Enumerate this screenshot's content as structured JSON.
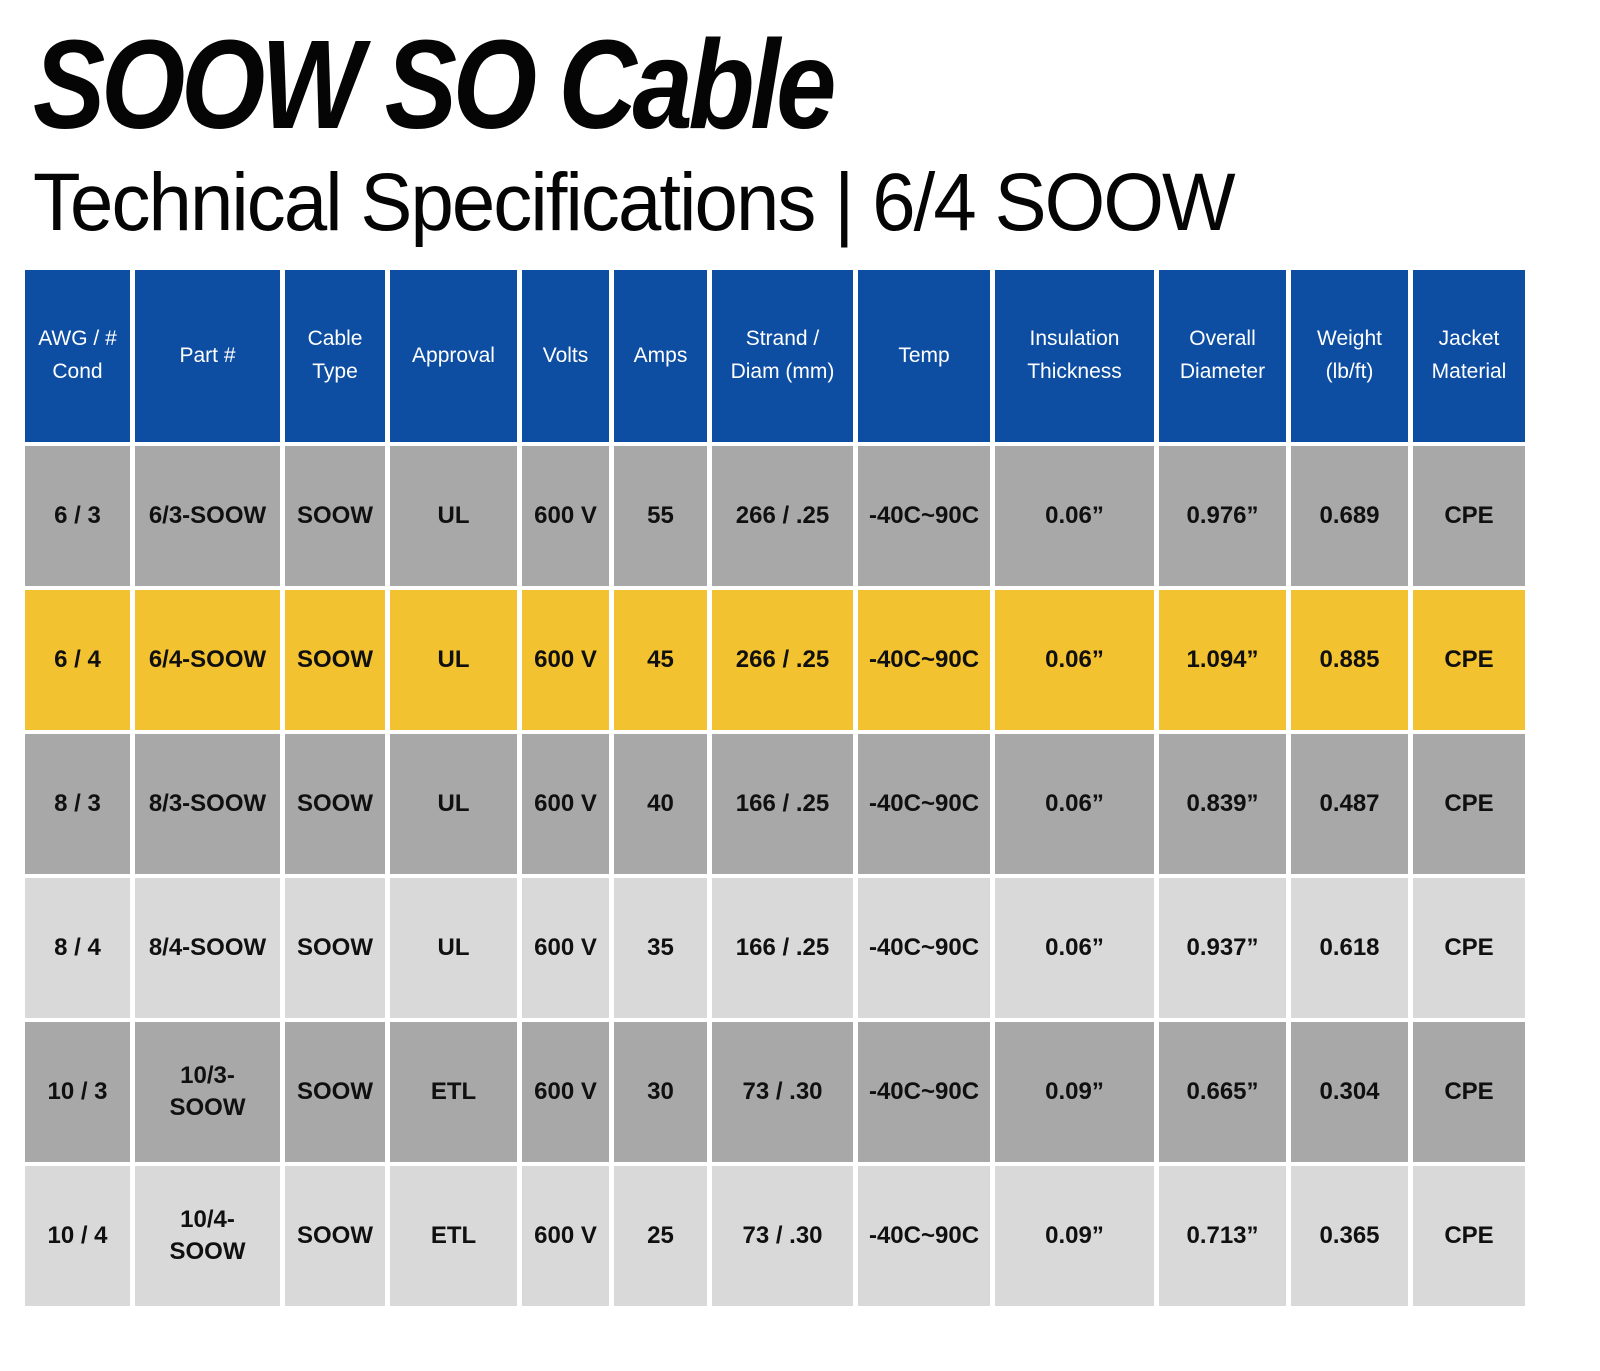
{
  "page": {
    "title": "SOOW SO Cable",
    "subtitle": "Technical Specifications | 6/4 SOOW"
  },
  "colors": {
    "header_bg": "#0d4ea3",
    "header_text": "#ffffff",
    "row_gray": "#a8a8a8",
    "row_light_gray": "#d9d9d9",
    "row_highlight_yellow": "#f2c230",
    "cell_text": "#101010",
    "page_bg": "#ffffff"
  },
  "table": {
    "columns": [
      "AWG / # Cond",
      "Part #",
      "Cable Type",
      "Approval",
      "Volts",
      "Amps",
      "Strand / Diam (mm)",
      "Temp",
      "Insulation Thickness",
      "Overall Diameter",
      "Weight (lb/ft)",
      "Jacket Material"
    ],
    "rows": [
      {
        "shade": "gray",
        "cells": [
          "6 / 3",
          "6/3-SOOW",
          "SOOW",
          "UL",
          "600 V",
          "55",
          "266 / .25",
          "-40C~90C",
          "0.06”",
          "0.976”",
          "0.689",
          "CPE"
        ]
      },
      {
        "shade": "highlight",
        "cells": [
          "6 / 4",
          "6/4-SOOW",
          "SOOW",
          "UL",
          "600 V",
          "45",
          "266 / .25",
          "-40C~90C",
          "0.06”",
          "1.094”",
          "0.885",
          "CPE"
        ]
      },
      {
        "shade": "gray",
        "cells": [
          "8 / 3",
          "8/3-SOOW",
          "SOOW",
          "UL",
          "600 V",
          "40",
          "166 / .25",
          "-40C~90C",
          "0.06”",
          "0.839”",
          "0.487",
          "CPE"
        ]
      },
      {
        "shade": "light",
        "cells": [
          "8 / 4",
          "8/4-SOOW",
          "SOOW",
          "UL",
          "600 V",
          "35",
          "166 / .25",
          "-40C~90C",
          "0.06”",
          "0.937”",
          "0.618",
          "CPE"
        ]
      },
      {
        "shade": "gray",
        "cells": [
          "10 / 3",
          "10/3-SOOW",
          "SOOW",
          "ETL",
          "600 V",
          "30",
          "73 / .30",
          "-40C~90C",
          "0.09”",
          "0.665”",
          "0.304",
          "CPE"
        ]
      },
      {
        "shade": "light",
        "cells": [
          "10 / 4",
          "10/4-SOOW",
          "SOOW",
          "ETL",
          "600 V",
          "25",
          "73 / .30",
          "-40C~90C",
          "0.09”",
          "0.713”",
          "0.365",
          "CPE"
        ]
      }
    ]
  }
}
